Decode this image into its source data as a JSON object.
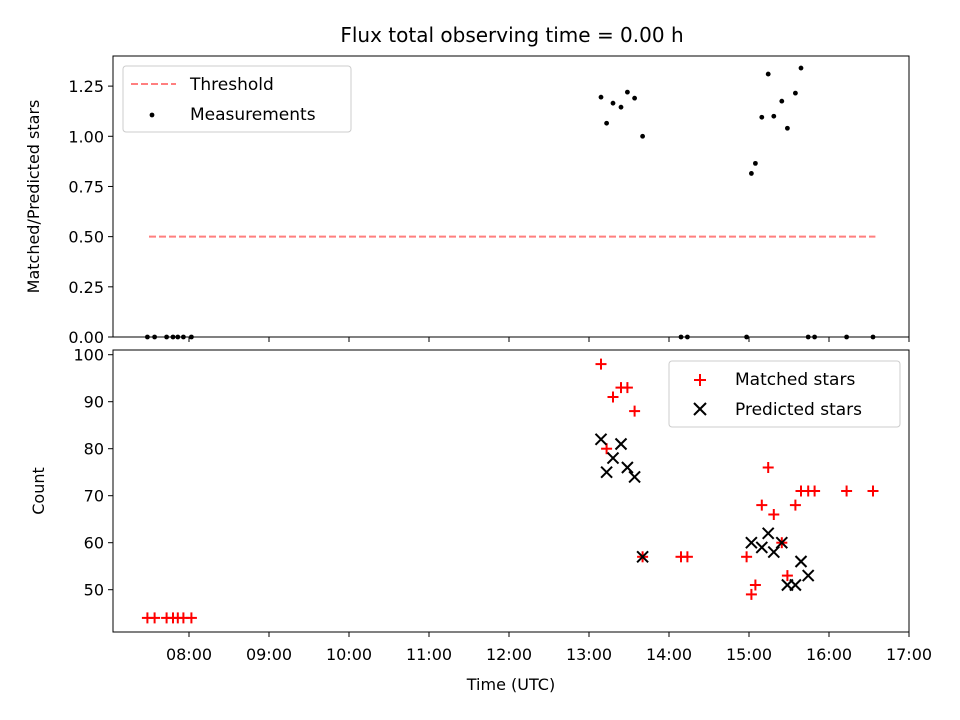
{
  "chart_data": [
    {
      "type": "scatter",
      "title": "Flux total observing time = 0.00 h",
      "xlabel": "",
      "ylabel": "Matched/Predicted stars",
      "x_unit": "hours (UTC)",
      "xlim": [
        7.05,
        17.0
      ],
      "ylim": [
        0.0,
        1.4
      ],
      "yticks": [
        0.0,
        0.25,
        0.5,
        0.75,
        1.0,
        1.25
      ],
      "ytick_labels": [
        "0.00",
        "0.25",
        "0.50",
        "0.75",
        "1.00",
        "1.25"
      ],
      "legend_position": "top-left",
      "series": [
        {
          "name": "Threshold",
          "kind": "line",
          "style": "dashed",
          "color": "#ff7f7f",
          "x": [
            7.5,
            16.58
          ],
          "y": [
            0.5,
            0.5
          ]
        },
        {
          "name": "Measurements",
          "kind": "scatter",
          "marker": "dot",
          "color": "#000000",
          "x": [
            7.48,
            7.57,
            7.72,
            7.8,
            7.86,
            7.93,
            8.03,
            13.15,
            13.22,
            13.3,
            13.4,
            13.48,
            13.57,
            13.67,
            14.15,
            14.23,
            14.97,
            15.03,
            15.08,
            15.16,
            15.24,
            15.31,
            15.41,
            15.48,
            15.58,
            15.65,
            15.74,
            15.82,
            16.22,
            16.55
          ],
          "y": [
            0.0,
            0.0,
            0.0,
            0.0,
            0.0,
            0.0,
            0.0,
            1.195,
            1.065,
            1.165,
            1.145,
            1.22,
            1.19,
            1.0,
            0.0,
            0.0,
            0.0,
            0.815,
            0.865,
            1.095,
            1.31,
            1.1,
            1.175,
            1.04,
            1.215,
            1.34,
            0.0,
            0.0,
            0.0,
            0.0
          ]
        }
      ]
    },
    {
      "type": "scatter",
      "title": "",
      "xlabel": "Time (UTC)",
      "ylabel": "Count",
      "x_unit": "hours (UTC)",
      "xlim": [
        7.05,
        17.0
      ],
      "ylim": [
        41,
        101
      ],
      "yticks": [
        50,
        60,
        70,
        80,
        90,
        100
      ],
      "ytick_labels": [
        "50",
        "60",
        "70",
        "80",
        "90",
        "100"
      ],
      "xticks": [
        8,
        9,
        10,
        11,
        12,
        13,
        14,
        15,
        16,
        17
      ],
      "xtick_labels": [
        "08:00",
        "09:00",
        "10:00",
        "11:00",
        "12:00",
        "13:00",
        "14:00",
        "15:00",
        "16:00",
        "17:00"
      ],
      "legend_position": "top-right",
      "series": [
        {
          "name": "Matched stars",
          "kind": "scatter",
          "marker": "plus",
          "color": "#ff0000",
          "x": [
            7.48,
            7.57,
            7.72,
            7.8,
            7.86,
            7.93,
            8.03,
            13.15,
            13.22,
            13.3,
            13.4,
            13.48,
            13.57,
            13.67,
            14.15,
            14.23,
            14.97,
            15.03,
            15.08,
            15.16,
            15.24,
            15.31,
            15.41,
            15.48,
            15.58,
            15.65,
            15.74,
            15.82,
            16.22,
            16.55
          ],
          "y": [
            44,
            44,
            44,
            44,
            44,
            44,
            44,
            98,
            80,
            91,
            93,
            93,
            88,
            57,
            57,
            57,
            57,
            49,
            51,
            68,
            76,
            66,
            60,
            53,
            68,
            71,
            71,
            71,
            71,
            71
          ]
        },
        {
          "name": "Predicted stars",
          "kind": "scatter",
          "marker": "x",
          "color": "#000000",
          "x": [
            13.15,
            13.22,
            13.3,
            13.4,
            13.48,
            13.57,
            13.67,
            15.03,
            15.16,
            15.24,
            15.31,
            15.41,
            15.48,
            15.58,
            15.65,
            15.74
          ],
          "y": [
            82,
            75,
            78,
            81,
            76,
            74,
            57,
            60,
            59,
            62,
            58,
            60,
            51,
            51,
            56,
            53
          ]
        }
      ]
    }
  ]
}
